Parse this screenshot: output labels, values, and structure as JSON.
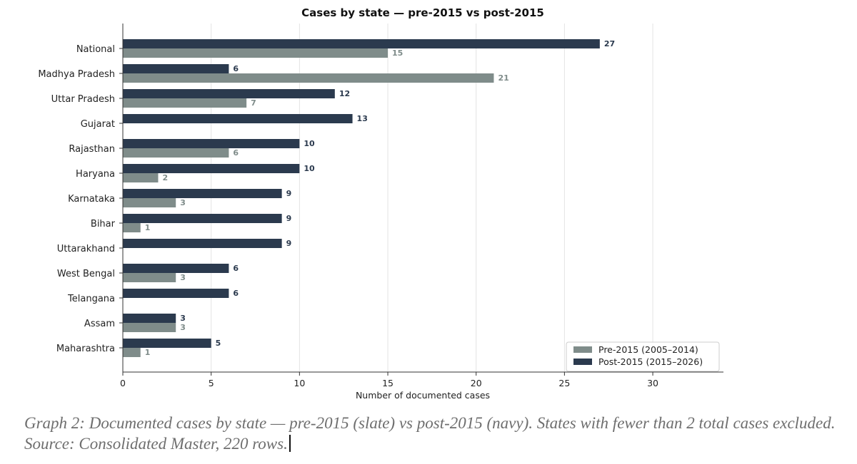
{
  "chart_data": {
    "type": "bar",
    "orientation": "horizontal",
    "title": "Cases by state — pre-2015 vs post-2015",
    "xlabel": "Number of documented cases",
    "ylabel": "",
    "xlim": [
      0,
      34
    ],
    "xticks": [
      0,
      5,
      10,
      15,
      20,
      25,
      30
    ],
    "grid": "x",
    "legend_position": "bottom-right",
    "categories": [
      "National",
      "Madhya Pradesh",
      "Uttar Pradesh",
      "Gujarat",
      "Rajasthan",
      "Haryana",
      "Karnataka",
      "Bihar",
      "Uttarakhand",
      "West Bengal",
      "Telangana",
      "Assam",
      "Maharashtra"
    ],
    "series": [
      {
        "name": "Post-2015 (2015–2026)",
        "color": "#2b3a4e",
        "values": [
          27,
          6,
          12,
          13,
          10,
          10,
          9,
          9,
          9,
          6,
          6,
          3,
          5
        ]
      },
      {
        "name": "Pre-2015 (2005–2014)",
        "color": "#7f8c8a",
        "values": [
          15,
          21,
          7,
          0,
          6,
          2,
          3,
          1,
          0,
          3,
          0,
          3,
          1
        ]
      }
    ],
    "legend_order": [
      1,
      0
    ]
  },
  "caption": "Graph 2: Documented cases by state — pre-2015 (slate) vs post-2015 (navy). States with fewer than 2 total cases excluded. Source: Consolidated Master, 220 rows."
}
